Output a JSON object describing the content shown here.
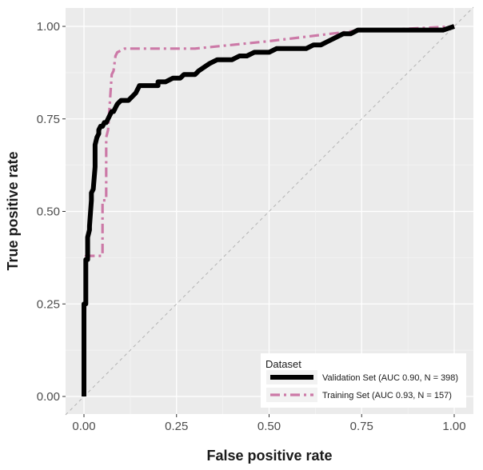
{
  "chart_data": {
    "type": "line",
    "title": "",
    "xlabel": "False positive rate",
    "ylabel": "True positive rate",
    "xlim": [
      0,
      1
    ],
    "ylim": [
      0,
      1
    ],
    "x_ticks": [
      "0.00",
      "0.25",
      "0.50",
      "0.75",
      "1.00"
    ],
    "y_ticks": [
      "0.00",
      "0.25",
      "0.50",
      "0.75",
      "1.00"
    ],
    "grid": true,
    "reference_line": {
      "x": [
        0,
        1
      ],
      "y": [
        0,
        1
      ],
      "style": "dashed",
      "color": "#b3b3b3"
    },
    "legend": {
      "title": "Dataset",
      "placement": "bottom-right"
    },
    "series": [
      {
        "name": "Validation Set (AUC 0.90, N = 398)",
        "color": "#000000",
        "style": "solid",
        "x": [
          0,
          0,
          0.005,
          0.005,
          0.01,
          0.01,
          0.015,
          0.015,
          0.02,
          0.02,
          0.025,
          0.03,
          0.03,
          0.035,
          0.04,
          0.04,
          0.045,
          0.05,
          0.055,
          0.06,
          0.065,
          0.07,
          0.075,
          0.08,
          0.09,
          0.1,
          0.11,
          0.12,
          0.14,
          0.15,
          0.16,
          0.19,
          0.2,
          0.2,
          0.22,
          0.24,
          0.24,
          0.26,
          0.27,
          0.29,
          0.3,
          0.31,
          0.34,
          0.36,
          0.37,
          0.4,
          0.42,
          0.44,
          0.46,
          0.48,
          0.5,
          0.52,
          0.54,
          0.55,
          0.56,
          0.6,
          0.62,
          0.64,
          0.66,
          0.68,
          0.7,
          0.72,
          0.74,
          0.76,
          0.78,
          0.8,
          0.84,
          0.88,
          0.9,
          0.92,
          0.95,
          0.97,
          1.0
        ],
        "y": [
          0,
          0.25,
          0.25,
          0.37,
          0.37,
          0.43,
          0.45,
          0.46,
          0.53,
          0.55,
          0.56,
          0.62,
          0.68,
          0.7,
          0.71,
          0.72,
          0.73,
          0.73,
          0.74,
          0.74,
          0.75,
          0.76,
          0.77,
          0.77,
          0.79,
          0.8,
          0.8,
          0.8,
          0.82,
          0.84,
          0.84,
          0.84,
          0.84,
          0.85,
          0.85,
          0.86,
          0.86,
          0.86,
          0.87,
          0.87,
          0.87,
          0.88,
          0.9,
          0.91,
          0.91,
          0.91,
          0.92,
          0.92,
          0.93,
          0.93,
          0.93,
          0.94,
          0.94,
          0.94,
          0.94,
          0.94,
          0.95,
          0.95,
          0.96,
          0.97,
          0.98,
          0.98,
          0.99,
          0.99,
          0.99,
          0.99,
          0.99,
          0.99,
          0.99,
          0.99,
          0.99,
          0.99,
          1.0
        ]
      },
      {
        "name": "Training Set (AUC 0.93, N = 157)",
        "color": "#cc79a7",
        "style": "dashdot",
        "x": [
          0,
          0.005,
          0.005,
          0.04,
          0.05,
          0.05,
          0.06,
          0.06,
          0.065,
          0.075,
          0.08,
          0.085,
          0.09,
          0.11,
          0.13,
          0.3,
          0.5,
          0.75,
          0.8,
          1.0
        ],
        "y": [
          0,
          0.37,
          0.38,
          0.38,
          0.38,
          0.53,
          0.53,
          0.7,
          0.72,
          0.87,
          0.88,
          0.92,
          0.93,
          0.94,
          0.94,
          0.94,
          0.96,
          0.99,
          0.99,
          1.0
        ]
      }
    ]
  }
}
